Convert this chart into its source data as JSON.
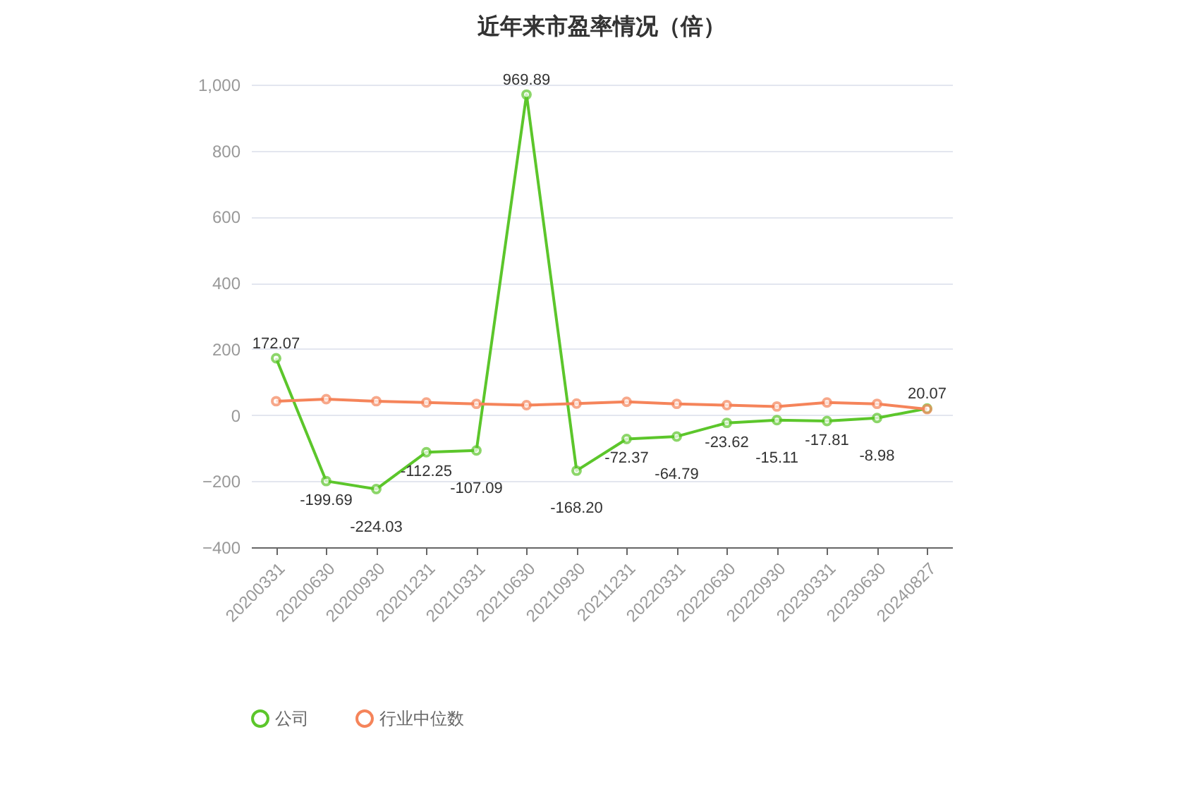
{
  "chart_data": {
    "type": "line",
    "title": "近年来市盈率情况（倍）",
    "categories": [
      "20200331",
      "20200630",
      "20200930",
      "20201231",
      "20210331",
      "20210630",
      "20210930",
      "20211231",
      "20220331",
      "20220630",
      "20220930",
      "20230331",
      "20230630",
      "20240827"
    ],
    "series": [
      {
        "name": "公司",
        "color": "#5cc62b",
        "values": [
          172.07,
          -199.69,
          -224.03,
          -112.25,
          -107.09,
          969.89,
          -168.2,
          -72.37,
          -64.79,
          -23.62,
          -15.11,
          -17.81,
          -8.98,
          20.07
        ],
        "value_labels": [
          "172.07",
          "-199.69",
          "-224.03",
          "-112.25",
          "-107.09",
          "969.89",
          "-168.20",
          "-72.37",
          "-64.79",
          "-23.62",
          "-15.11",
          "-17.81",
          "-8.98",
          "20.07"
        ]
      },
      {
        "name": "行业中位数",
        "color": "#f5845a",
        "values": [
          42,
          48,
          42,
          38,
          34,
          30,
          35,
          40,
          34,
          30,
          26,
          38,
          34,
          18
        ]
      }
    ],
    "ylim": [
      -400,
      1000
    ],
    "yticks": [
      -400,
      -200,
      0,
      200,
      400,
      600,
      800,
      {
        "value": 1000,
        "label": "1,000"
      }
    ],
    "grid": "y",
    "legend": "bottom",
    "marker": "circle"
  }
}
